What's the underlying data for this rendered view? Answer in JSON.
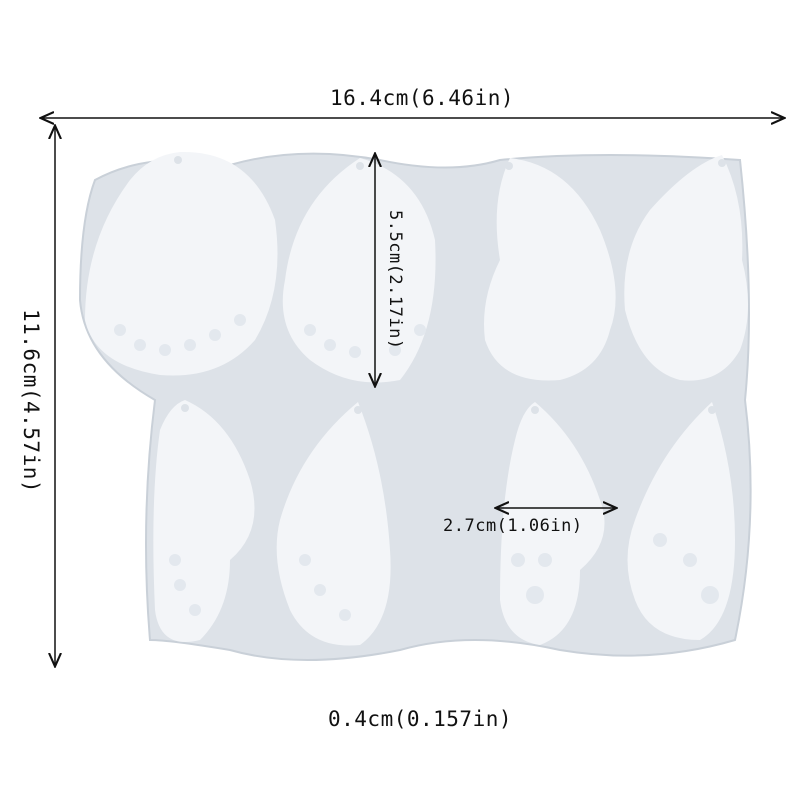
{
  "dimensions": {
    "width_label": "16.4cm(6.46in)",
    "height_label": "11.6cm(4.57in)",
    "wing_height_label": "5.5cm(2.17in)",
    "wing_width_label": "2.7cm(1.06in)",
    "thickness_label": "0.4cm(0.157in)"
  },
  "colors": {
    "mold": "#dde2e8",
    "wing": "#f3f5f8",
    "pattern": "#e3e8ee",
    "arrow": "#111111"
  }
}
